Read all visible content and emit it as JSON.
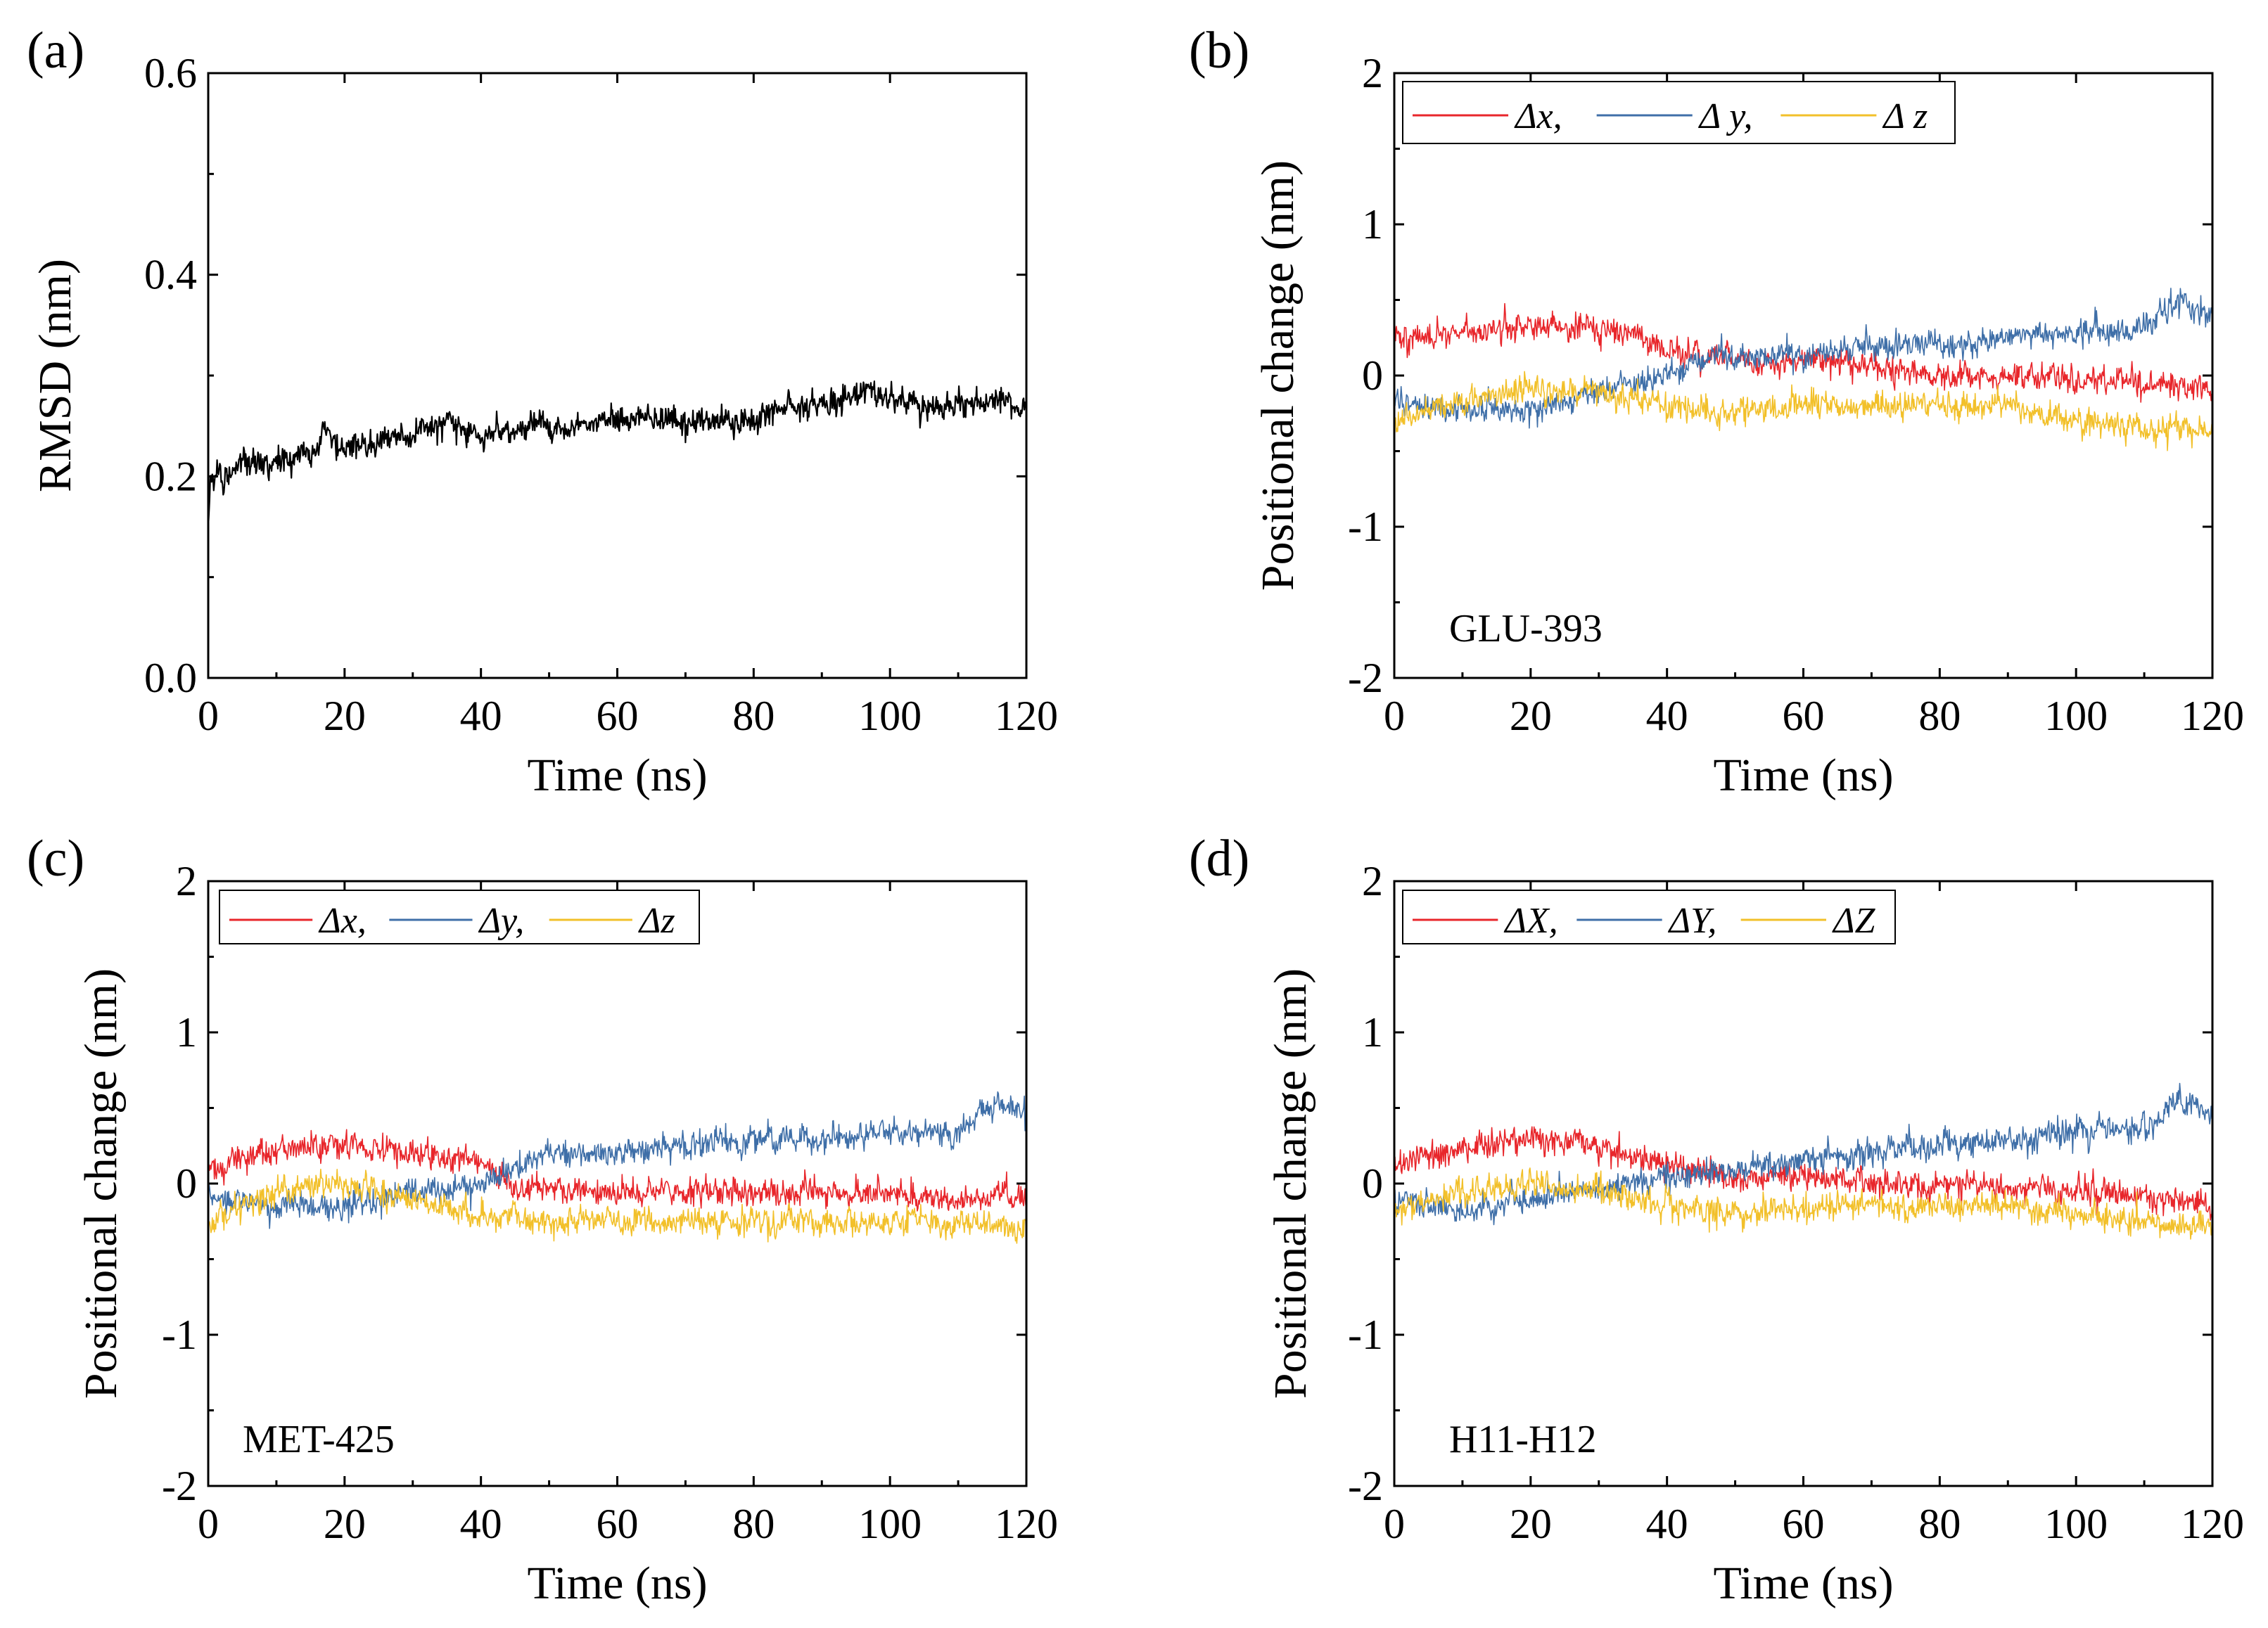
{
  "figure": {
    "panels": [
      {
        "id": "a",
        "label": "(a)",
        "annotation": "",
        "legend": []
      },
      {
        "id": "b",
        "label": "(b)",
        "annotation": "GLU-393",
        "legend": [
          {
            "symbol": "Δx",
            "suffix": ",",
            "color": "#e8262b"
          },
          {
            "symbol": "Δ y",
            "suffix": ",",
            "color": "#3f6fa8"
          },
          {
            "symbol": "Δ z",
            "suffix": "",
            "color": "#f2c02a"
          }
        ]
      },
      {
        "id": "c",
        "label": "(c)",
        "annotation": "MET-425",
        "legend": [
          {
            "symbol": "Δx",
            "suffix": ",",
            "color": "#e8262b"
          },
          {
            "symbol": "Δy",
            "suffix": ",",
            "color": "#3f6fa8"
          },
          {
            "symbol": "Δz",
            "suffix": "",
            "color": "#f2c02a"
          }
        ]
      },
      {
        "id": "d",
        "label": "(d)",
        "annotation": "H11-H12",
        "legend": [
          {
            "symbol": "ΔX",
            "suffix": ",",
            "color": "#e8262b"
          },
          {
            "symbol": "ΔY",
            "suffix": ",",
            "color": "#3f6fa8"
          },
          {
            "symbol": "ΔZ",
            "suffix": "",
            "color": "#f2c02a"
          }
        ]
      }
    ]
  },
  "chart_data": [
    {
      "panel": "a",
      "type": "line",
      "title": "",
      "xlabel": "Time (ns)",
      "ylabel": "RMSD (nm)",
      "xlim": [
        0,
        120
      ],
      "ylim": [
        0,
        0.6
      ],
      "xticks": [
        "0",
        "20",
        "40",
        "60",
        "80",
        "100",
        "120"
      ],
      "yticks": [
        "0.0",
        "0.2",
        "0.4",
        "0.6"
      ],
      "grid": false,
      "series": [
        {
          "color": "#000000",
          "x": [
            0,
            0.3,
            1,
            2,
            5,
            10,
            15,
            16,
            17,
            18,
            20,
            25,
            30,
            35,
            40,
            45,
            50,
            55,
            60,
            65,
            70,
            75,
            80,
            85,
            90,
            95,
            96,
            100,
            105,
            110,
            115,
            120
          ],
          "y": [
            0.15,
            0.19,
            0.2,
            0.2,
            0.21,
            0.215,
            0.225,
            0.228,
            0.25,
            0.235,
            0.23,
            0.235,
            0.24,
            0.255,
            0.24,
            0.245,
            0.25,
            0.25,
            0.26,
            0.255,
            0.255,
            0.255,
            0.255,
            0.27,
            0.27,
            0.28,
            0.29,
            0.275,
            0.27,
            0.27,
            0.275,
            0.27
          ]
        }
      ]
    },
    {
      "panel": "b",
      "type": "line",
      "title": "",
      "xlabel": "Time (ns)",
      "ylabel": "Positional change (nm)",
      "xlim": [
        0,
        120
      ],
      "ylim": [
        -2,
        2
      ],
      "xticks": [
        "0",
        "20",
        "40",
        "60",
        "80",
        "100",
        "120"
      ],
      "yticks": [
        "-2",
        "-1",
        "0",
        "1",
        "2"
      ],
      "grid": false,
      "legend_position": "top",
      "series": [
        {
          "color": "#e8262b",
          "x": [
            0,
            10,
            20,
            30,
            35,
            40,
            50,
            60,
            70,
            80,
            90,
            100,
            110,
            120
          ],
          "y": [
            0.25,
            0.28,
            0.35,
            0.3,
            0.3,
            0.15,
            0.1,
            0.1,
            0.05,
            0.0,
            0.0,
            -0.02,
            -0.05,
            -0.1
          ]
        },
        {
          "color": "#3f6fa8",
          "x": [
            0,
            10,
            20,
            30,
            40,
            45,
            50,
            60,
            70,
            80,
            90,
            100,
            110,
            115,
            120
          ],
          "y": [
            -0.15,
            -0.25,
            -0.2,
            -0.1,
            0.0,
            0.1,
            0.12,
            0.15,
            0.2,
            0.2,
            0.25,
            0.3,
            0.3,
            0.5,
            0.4
          ]
        },
        {
          "color": "#f2c02a",
          "x": [
            0,
            10,
            20,
            30,
            40,
            50,
            60,
            70,
            80,
            90,
            100,
            110,
            120
          ],
          "y": [
            -0.3,
            -0.15,
            -0.1,
            -0.1,
            -0.2,
            -0.25,
            -0.2,
            -0.2,
            -0.2,
            -0.2,
            -0.3,
            -0.35,
            -0.35
          ]
        }
      ]
    },
    {
      "panel": "c",
      "type": "line",
      "title": "",
      "xlabel": "Time (ns)",
      "ylabel": "Positional change (nm)",
      "xlim": [
        0,
        120
      ],
      "ylim": [
        -2,
        2
      ],
      "xticks": [
        "0",
        "20",
        "40",
        "60",
        "80",
        "100",
        "120"
      ],
      "yticks": [
        "-2",
        "-1",
        "0",
        "1",
        "2"
      ],
      "grid": false,
      "legend_position": "top-left",
      "series": [
        {
          "color": "#e8262b",
          "x": [
            0,
            10,
            20,
            30,
            40,
            45,
            50,
            60,
            70,
            80,
            90,
            100,
            110,
            120
          ],
          "y": [
            0.1,
            0.22,
            0.25,
            0.2,
            0.15,
            0.0,
            -0.05,
            -0.05,
            -0.08,
            -0.05,
            -0.05,
            -0.08,
            -0.1,
            -0.1
          ]
        },
        {
          "color": "#3f6fa8",
          "x": [
            0,
            10,
            20,
            30,
            40,
            50,
            60,
            70,
            80,
            90,
            100,
            110,
            115,
            120
          ],
          "y": [
            -0.1,
            -0.15,
            -0.15,
            -0.05,
            0.0,
            0.2,
            0.2,
            0.25,
            0.3,
            0.3,
            0.35,
            0.35,
            0.55,
            0.45
          ]
        },
        {
          "color": "#f2c02a",
          "x": [
            0,
            10,
            20,
            30,
            40,
            50,
            60,
            70,
            80,
            90,
            100,
            110,
            120
          ],
          "y": [
            -0.25,
            -0.05,
            0.0,
            -0.1,
            -0.2,
            -0.25,
            -0.25,
            -0.25,
            -0.25,
            -0.25,
            -0.25,
            -0.25,
            -0.3
          ]
        }
      ]
    },
    {
      "panel": "d",
      "type": "line",
      "title": "",
      "xlabel": "Time (ns)",
      "ylabel": "Positional change (nm)",
      "xlim": [
        0,
        120
      ],
      "ylim": [
        -2,
        2
      ],
      "xticks": [
        "0",
        "20",
        "40",
        "60",
        "80",
        "100",
        "120"
      ],
      "yticks": [
        "-2",
        "-1",
        "0",
        "1",
        "2"
      ],
      "grid": false,
      "legend_position": "top-left",
      "series": [
        {
          "color": "#e8262b",
          "x": [
            0,
            10,
            20,
            30,
            40,
            50,
            60,
            70,
            80,
            90,
            100,
            110,
            120
          ],
          "y": [
            0.15,
            0.22,
            0.3,
            0.25,
            0.12,
            0.05,
            0.05,
            0.0,
            -0.02,
            -0.03,
            -0.05,
            -0.08,
            -0.15
          ]
        },
        {
          "color": "#3f6fa8",
          "x": [
            0,
            10,
            20,
            30,
            40,
            50,
            60,
            70,
            80,
            90,
            100,
            110,
            115,
            120
          ],
          "y": [
            -0.1,
            -0.2,
            -0.1,
            -0.05,
            0.05,
            0.1,
            0.15,
            0.2,
            0.25,
            0.3,
            0.35,
            0.35,
            0.55,
            0.45
          ]
        },
        {
          "color": "#f2c02a",
          "x": [
            0,
            10,
            20,
            30,
            40,
            50,
            60,
            70,
            80,
            90,
            100,
            110,
            120
          ],
          "y": [
            -0.2,
            -0.05,
            0.0,
            -0.05,
            -0.15,
            -0.2,
            -0.15,
            -0.15,
            -0.15,
            -0.15,
            -0.2,
            -0.25,
            -0.3
          ]
        }
      ]
    }
  ]
}
